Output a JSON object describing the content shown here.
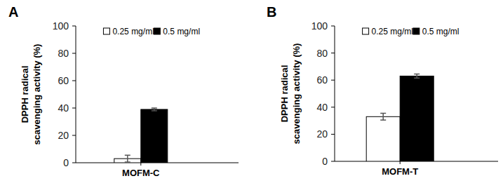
{
  "chart_data": [
    {
      "type": "bar",
      "title": "A",
      "y_label": [
        "DPPH radical",
        "scavenging activity (%)"
      ],
      "categories": [
        "MOFM-C"
      ],
      "series": [
        {
          "name": "0.25 mg/ml",
          "color": "#ffffff",
          "values": [
            3
          ],
          "errors": [
            2.5
          ]
        },
        {
          "name": "0.5 mg/ml",
          "color": "#000000",
          "values": [
            39
          ],
          "errors": [
            1
          ]
        }
      ],
      "ylim": [
        0,
        100
      ],
      "yticks": [
        0,
        20,
        40,
        60,
        80,
        100
      ],
      "legend": "top"
    },
    {
      "type": "bar",
      "title": "B",
      "y_label": [
        "DPPH radical",
        "scavenging activity (%)"
      ],
      "categories": [
        "MOFM-T"
      ],
      "series": [
        {
          "name": "0.25 mg/ml",
          "color": "#ffffff",
          "values": [
            33
          ],
          "errors": [
            2.5
          ]
        },
        {
          "name": "0.5 mg/ml",
          "color": "#000000",
          "values": [
            63
          ],
          "errors": [
            1.5
          ]
        }
      ],
      "ylim": [
        0,
        100
      ],
      "yticks": [
        0,
        20,
        40,
        60,
        80,
        100
      ],
      "legend": "top"
    }
  ]
}
